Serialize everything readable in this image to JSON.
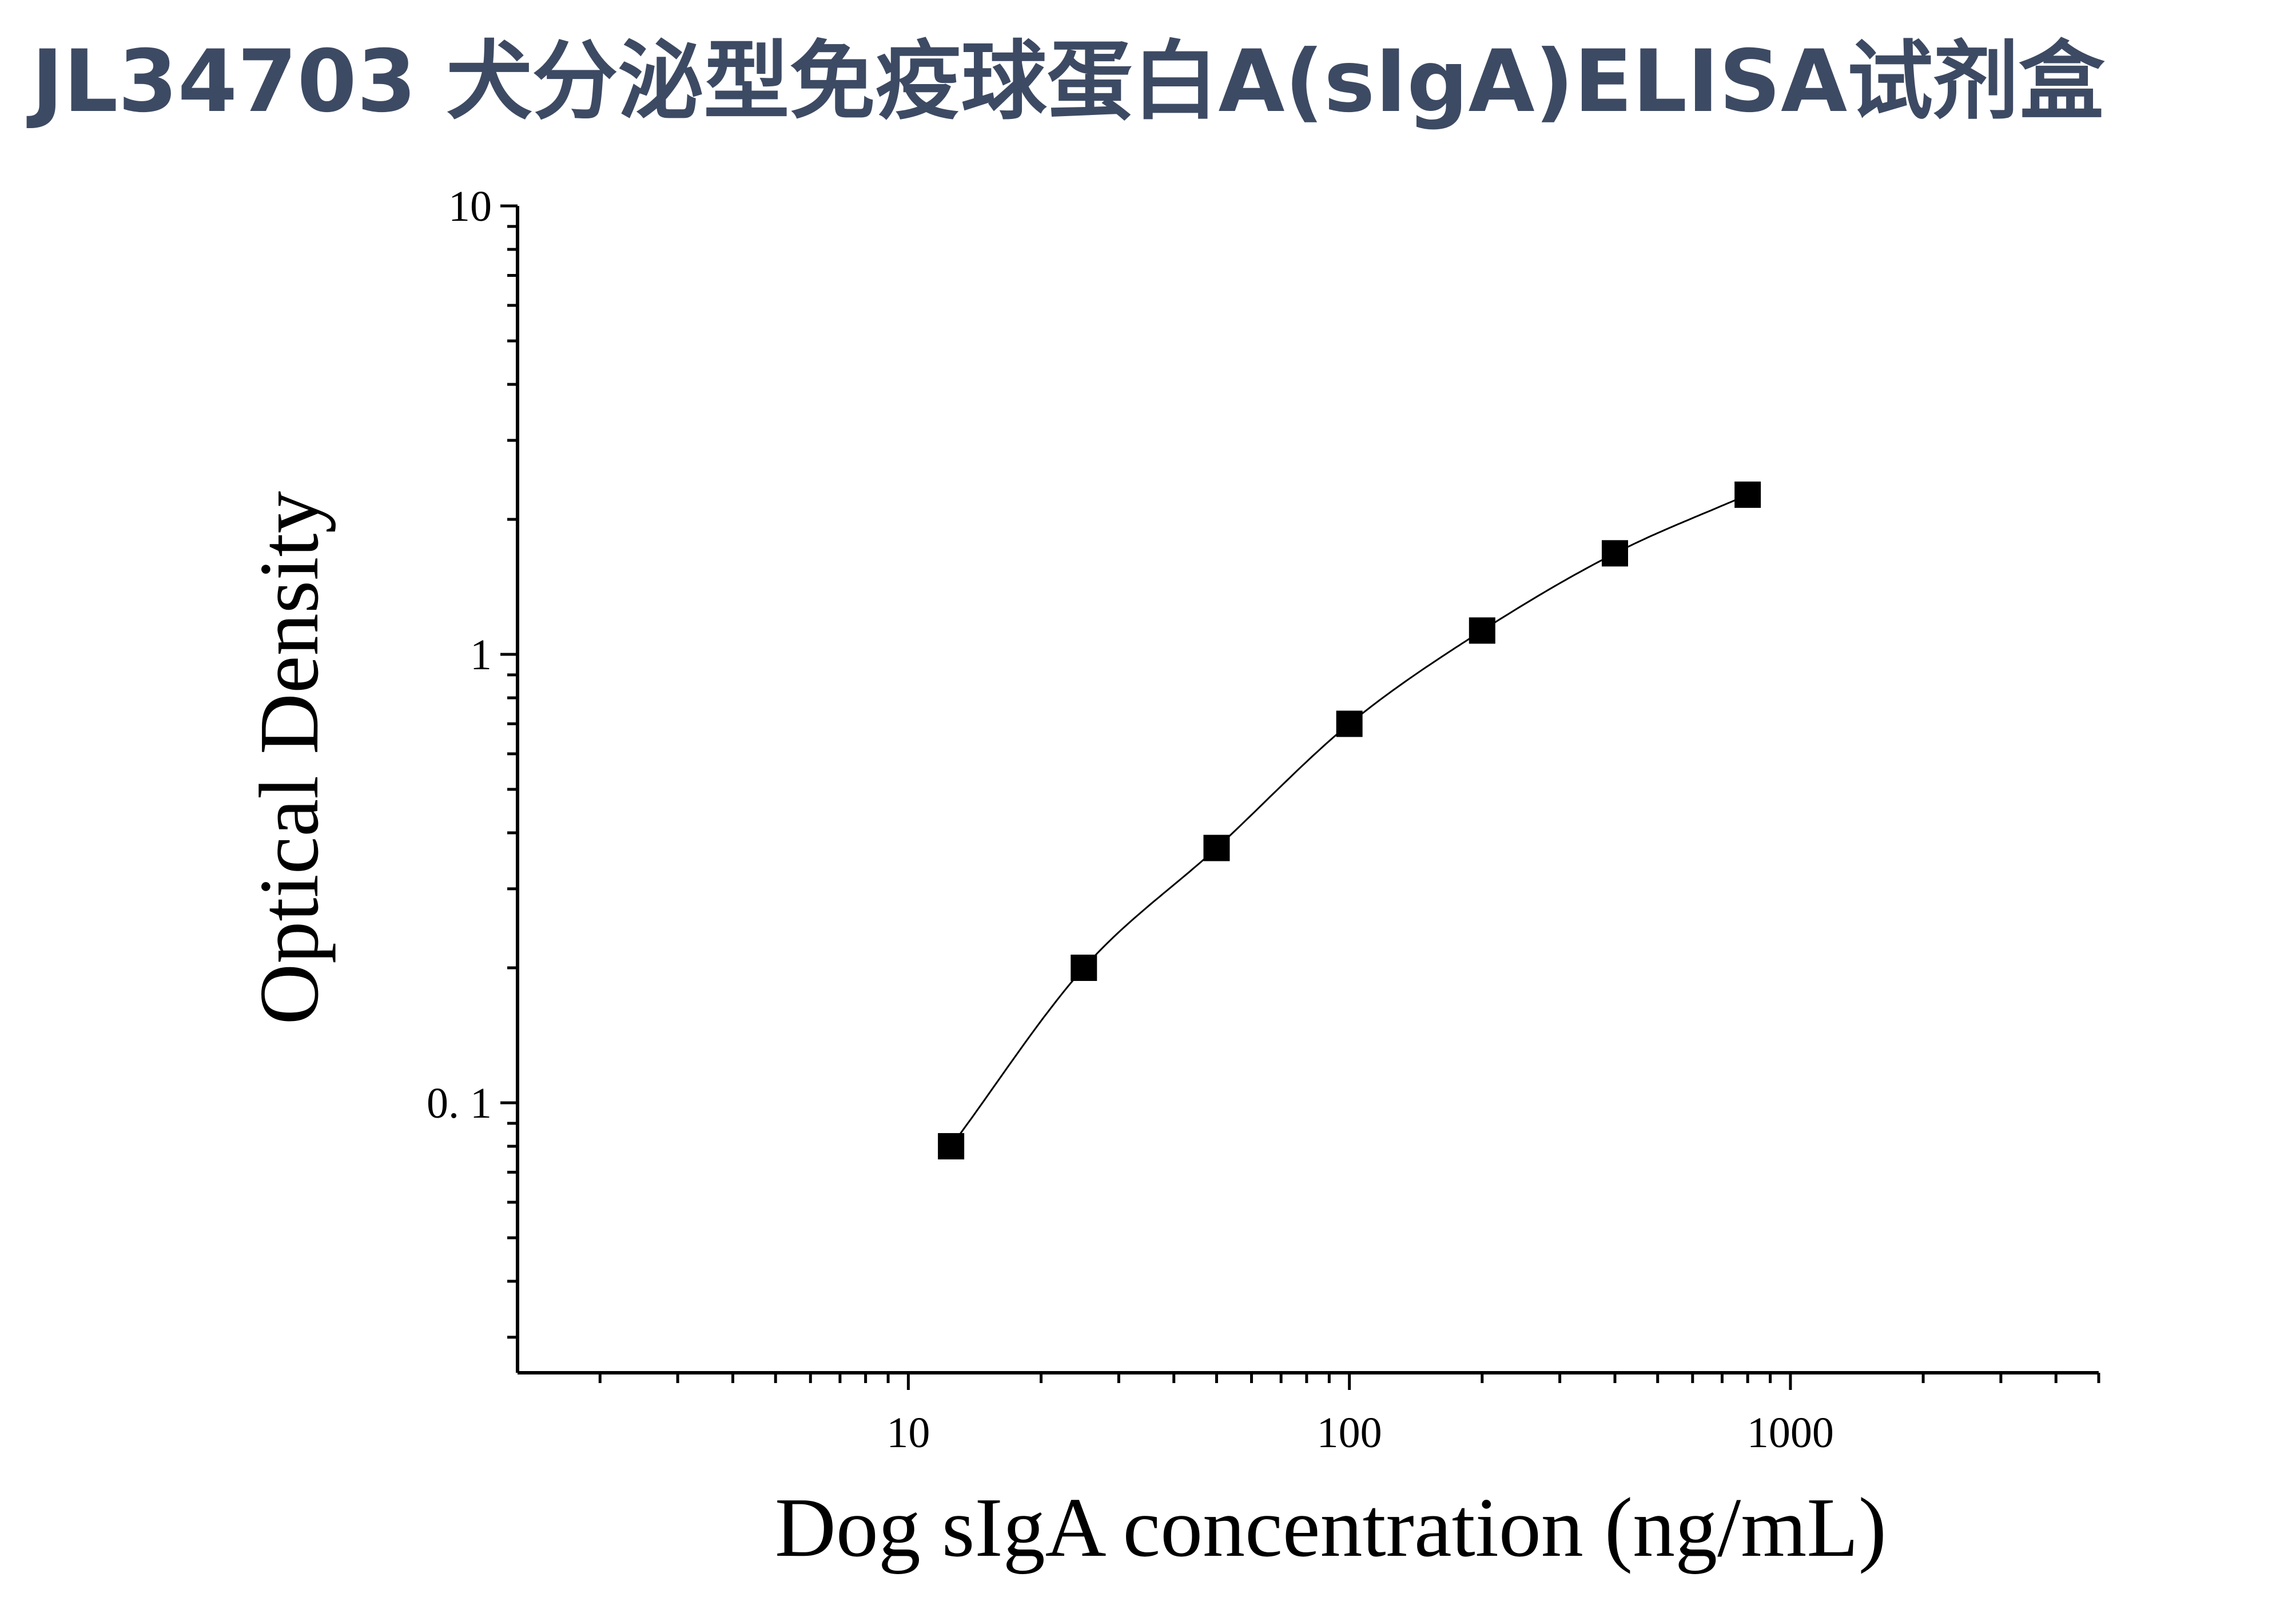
{
  "page": {
    "title": "JL34703 犬分泌型免疫球蛋白A(sIgA)ELISA试剂盒"
  },
  "colors": {
    "title": "#3d4a63",
    "axis": "#000000",
    "marker": "#000000",
    "curve": "#000000"
  },
  "chart_data": {
    "type": "scatter",
    "title": "",
    "xlabel": "Dog sIgA concentration (ng/mL)",
    "ylabel": "Optical Density",
    "xscale": "log",
    "yscale": "log",
    "xlim": [
      1.3,
      5000
    ],
    "ylim": [
      0.025,
      10
    ],
    "x_ticks": [
      {
        "value": 10,
        "label": "10"
      },
      {
        "value": 100,
        "label": "100"
      },
      {
        "value": 1000,
        "label": "1000"
      }
    ],
    "y_ticks": [
      {
        "value": 0.1,
        "label": "0. 1"
      },
      {
        "value": 1,
        "label": "1"
      },
      {
        "value": 10,
        "label": "10"
      }
    ],
    "grid": false,
    "legend": "none",
    "marker": "square",
    "fit_curve": true,
    "series": [
      {
        "x": [
          12.5,
          25,
          50,
          100,
          200,
          400,
          800
        ],
        "y": [
          0.08,
          0.2,
          0.37,
          0.7,
          1.13,
          1.68,
          2.27
        ]
      }
    ]
  }
}
